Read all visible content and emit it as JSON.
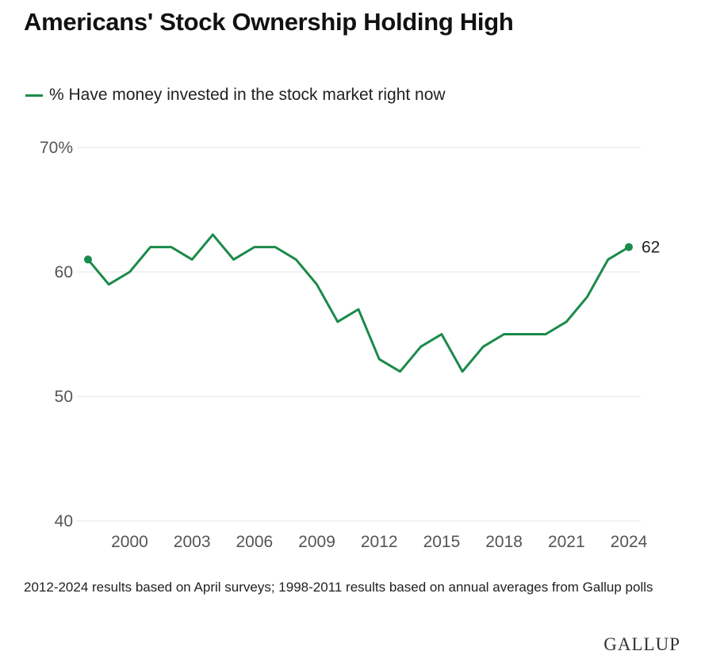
{
  "title": "Americans' Stock Ownership Holding High",
  "legend": {
    "label": "% Have money invested in the stock market right now"
  },
  "footnote": "2012-2024 results based on April surveys; 1998-2011 results based on annual averages from Gallup polls",
  "brand": "GALLUP",
  "colors": {
    "line": "#1b8a4a",
    "grid": "#e3e3e3",
    "axis_text": "#555555"
  },
  "chart_data": {
    "type": "line",
    "title": "Americans' Stock Ownership Holding High",
    "xlabel": "",
    "ylabel": "",
    "series": [
      {
        "name": "% Have money invested in the stock market right now",
        "x": [
          1998,
          1999,
          2000,
          2001,
          2002,
          2003,
          2004,
          2005,
          2006,
          2007,
          2008,
          2009,
          2010,
          2011,
          2012,
          2013,
          2014,
          2015,
          2016,
          2017,
          2018,
          2019,
          2020,
          2021,
          2022,
          2023,
          2024
        ],
        "values": [
          61,
          59,
          60,
          62,
          62,
          61,
          63,
          61,
          62,
          62,
          61,
          59,
          56,
          57,
          53,
          52,
          54,
          55,
          52,
          54,
          55,
          55,
          55,
          56,
          58,
          61,
          62
        ]
      }
    ],
    "xlim": [
      1998,
      2024
    ],
    "ylim": [
      40,
      70
    ],
    "x_ticks": [
      2000,
      2003,
      2006,
      2009,
      2012,
      2015,
      2018,
      2021,
      2024
    ],
    "y_ticks": [
      40,
      50,
      60,
      70
    ],
    "y_tick_labels": [
      "40",
      "50",
      "60",
      "70%"
    ],
    "end_label": "62",
    "grid": true
  }
}
